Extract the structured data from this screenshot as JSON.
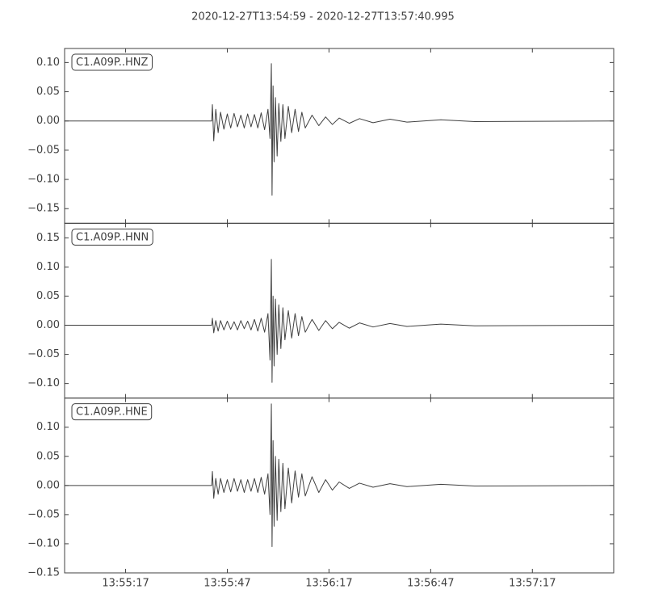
{
  "title": "2020-12-27T13:54:59  -  2020-12-27T13:57:40.995",
  "chart_data": [
    {
      "type": "line",
      "label": "C1.A09P..HNZ",
      "color": "#404040",
      "xlim": [
        "13:54:59",
        "13:57:40.995"
      ],
      "ylim": [
        -0.175,
        0.124
      ],
      "yticks": [
        {
          "value": 0.1,
          "label": "0.10"
        },
        {
          "value": 0.05,
          "label": "0.05"
        },
        {
          "value": 0,
          "label": "0.00"
        },
        {
          "value": -0.05,
          "label": "−0.05"
        },
        {
          "value": -0.1,
          "label": "−0.10"
        },
        {
          "value": -0.15,
          "label": "−0.15"
        }
      ],
      "x": [
        "13:54:59",
        "13:55:42.4",
        "13:55:42.6",
        "13:55:43",
        "13:55:43.6",
        "13:55:44.3",
        "13:55:45",
        "13:55:46",
        "13:55:47",
        "13:55:48",
        "13:55:49",
        "13:55:50",
        "13:55:51",
        "13:55:52",
        "13:55:53",
        "13:55:54",
        "13:55:55",
        "13:55:56",
        "13:55:57",
        "13:55:58",
        "13:55:59",
        "13:55:59.6",
        "13:56:00",
        "13:56:00.2",
        "13:56:00.5",
        "13:56:00.8",
        "13:56:01.2",
        "13:56:01.7",
        "13:56:02.2",
        "13:56:02.8",
        "13:56:03.4",
        "13:56:04",
        "13:56:05",
        "13:56:06",
        "13:56:07",
        "13:56:08",
        "13:56:09",
        "13:56:10",
        "13:56:12",
        "13:56:14",
        "13:56:16",
        "13:56:18",
        "13:56:20",
        "13:56:23",
        "13:56:26",
        "13:56:30",
        "13:56:35",
        "13:56:40",
        "13:56:50",
        "13:57:00",
        "13:57:40.995"
      ],
      "values": [
        0,
        0,
        0.028,
        -0.034,
        0.02,
        -0.02,
        0.015,
        -0.014,
        0.012,
        -0.012,
        0.013,
        -0.01,
        0.01,
        -0.012,
        0.012,
        -0.01,
        0.011,
        -0.012,
        0.014,
        -0.015,
        0.02,
        -0.03,
        0.098,
        -0.127,
        0.06,
        -0.07,
        0.04,
        -0.06,
        0.03,
        -0.035,
        0.028,
        -0.03,
        0.025,
        -0.02,
        0.02,
        -0.018,
        0.015,
        -0.012,
        0.01,
        -0.008,
        0.007,
        -0.006,
        0.005,
        -0.004,
        0.004,
        -0.003,
        0.003,
        -0.002,
        0.002,
        -0.001,
        0
      ]
    },
    {
      "type": "line",
      "label": "C1.A09P..HNN",
      "color": "#404040",
      "xlim": [
        "13:54:59",
        "13:57:40.995"
      ],
      "ylim": [
        -0.125,
        0.175
      ],
      "yticks": [
        {
          "value": 0.15,
          "label": "0.15"
        },
        {
          "value": 0.1,
          "label": "0.10"
        },
        {
          "value": 0.05,
          "label": "0.05"
        },
        {
          "value": 0,
          "label": "0.00"
        },
        {
          "value": -0.05,
          "label": "−0.05"
        },
        {
          "value": -0.1,
          "label": "−0.10"
        }
      ],
      "x": [
        "13:54:59",
        "13:55:42.4",
        "13:55:42.6",
        "13:55:43",
        "13:55:43.6",
        "13:55:44.3",
        "13:55:45",
        "13:55:46",
        "13:55:47",
        "13:55:48",
        "13:55:49",
        "13:55:50",
        "13:55:51",
        "13:55:52",
        "13:55:53",
        "13:55:54",
        "13:55:55",
        "13:55:56",
        "13:55:57",
        "13:55:58",
        "13:55:59",
        "13:55:59.6",
        "13:56:00",
        "13:56:00.2",
        "13:56:00.5",
        "13:56:00.8",
        "13:56:01.2",
        "13:56:01.7",
        "13:56:02.2",
        "13:56:02.8",
        "13:56:03.4",
        "13:56:04",
        "13:56:05",
        "13:56:06",
        "13:56:07",
        "13:56:08",
        "13:56:09",
        "13:56:10",
        "13:56:12",
        "13:56:14",
        "13:56:16",
        "13:56:18",
        "13:56:20",
        "13:56:23",
        "13:56:26",
        "13:56:30",
        "13:56:35",
        "13:56:40",
        "13:56:50",
        "13:57:00",
        "13:57:40.995"
      ],
      "values": [
        0,
        0,
        0.012,
        -0.013,
        0.008,
        -0.01,
        0.008,
        -0.008,
        0.007,
        -0.007,
        0.006,
        -0.008,
        0.008,
        -0.006,
        0.007,
        -0.008,
        0.01,
        -0.01,
        0.012,
        -0.012,
        0.02,
        -0.06,
        0.113,
        -0.098,
        0.05,
        -0.07,
        0.045,
        -0.05,
        0.035,
        -0.04,
        0.03,
        -0.025,
        0.025,
        -0.022,
        0.02,
        -0.018,
        0.015,
        -0.012,
        0.01,
        -0.009,
        0.008,
        -0.006,
        0.005,
        -0.005,
        0.004,
        -0.003,
        0.003,
        -0.002,
        0.002,
        -0.001,
        0
      ]
    },
    {
      "type": "line",
      "label": "C1.A09P..HNE",
      "color": "#404040",
      "xlim": [
        "13:54:59",
        "13:57:40.995"
      ],
      "ylim": [
        -0.15,
        0.15
      ],
      "yticks": [
        {
          "value": 0.1,
          "label": "0.10"
        },
        {
          "value": 0.05,
          "label": "0.05"
        },
        {
          "value": 0,
          "label": "0.00"
        },
        {
          "value": -0.05,
          "label": "−0.05"
        },
        {
          "value": -0.1,
          "label": "−0.10"
        },
        {
          "value": -0.15,
          "label": "−0.15"
        }
      ],
      "xticks": [
        "13:55:17",
        "13:55:47",
        "13:56:17",
        "13:56:47",
        "13:57:17"
      ],
      "x": [
        "13:54:59",
        "13:55:42.4",
        "13:55:42.6",
        "13:55:43",
        "13:55:43.6",
        "13:55:44.3",
        "13:55:45",
        "13:55:46",
        "13:55:47",
        "13:55:48",
        "13:55:49",
        "13:55:50",
        "13:55:51",
        "13:55:52",
        "13:55:53",
        "13:55:54",
        "13:55:55",
        "13:55:56",
        "13:55:57",
        "13:55:58",
        "13:55:59",
        "13:55:59.6",
        "13:56:00",
        "13:56:00.2",
        "13:56:00.5",
        "13:56:00.8",
        "13:56:01.2",
        "13:56:01.7",
        "13:56:02.2",
        "13:56:02.8",
        "13:56:03.4",
        "13:56:04",
        "13:56:05",
        "13:56:06",
        "13:56:07",
        "13:56:08",
        "13:56:09",
        "13:56:10",
        "13:56:12",
        "13:56:14",
        "13:56:16",
        "13:56:18",
        "13:56:20",
        "13:56:23",
        "13:56:26",
        "13:56:30",
        "13:56:35",
        "13:56:40",
        "13:56:50",
        "13:57:00",
        "13:57:40.995"
      ],
      "values": [
        0,
        0,
        0.024,
        -0.022,
        0.012,
        -0.015,
        0.012,
        -0.012,
        0.01,
        -0.011,
        0.012,
        -0.01,
        0.01,
        -0.012,
        0.01,
        -0.01,
        0.012,
        -0.012,
        0.014,
        -0.015,
        0.02,
        -0.05,
        0.14,
        -0.105,
        0.077,
        -0.07,
        0.05,
        -0.06,
        0.045,
        -0.045,
        0.038,
        -0.04,
        0.03,
        -0.03,
        0.025,
        -0.02,
        0.02,
        -0.018,
        0.015,
        -0.012,
        0.01,
        -0.008,
        0.006,
        -0.005,
        0.004,
        -0.003,
        0.003,
        -0.002,
        0.002,
        -0.001,
        0
      ]
    }
  ]
}
